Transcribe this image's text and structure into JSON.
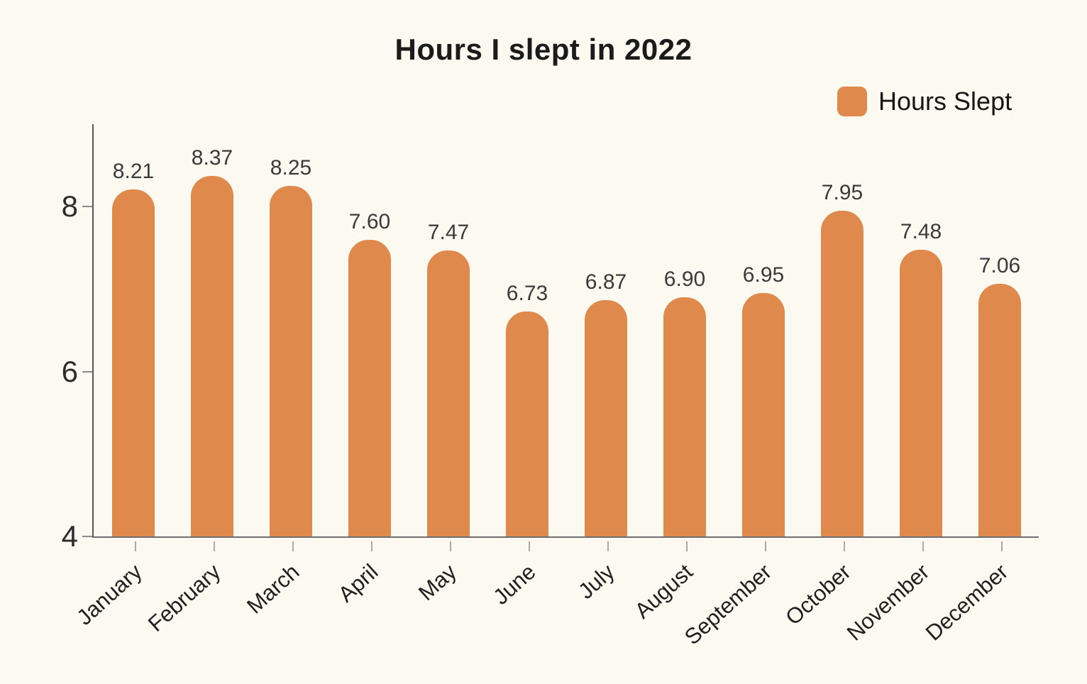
{
  "page": {
    "background_color": "#FCFAF0"
  },
  "title": "Hours I slept in 2022",
  "legend": {
    "label": "Hours Slept",
    "swatch_color": "#E0894C",
    "position": "top-right"
  },
  "chart_data": {
    "type": "bar",
    "title": "Hours I slept in 2022",
    "categories": [
      "January",
      "February",
      "March",
      "April",
      "May",
      "June",
      "July",
      "August",
      "September",
      "October",
      "November",
      "December"
    ],
    "series": [
      {
        "name": "Hours Slept",
        "color": "#E0894C",
        "values": [
          8.21,
          8.37,
          8.25,
          7.6,
          7.47,
          6.73,
          6.87,
          6.9,
          6.95,
          7.95,
          7.48,
          7.06
        ]
      }
    ],
    "value_labels": [
      "8.21",
      "8.37",
      "8.25",
      "7.60",
      "7.47",
      "6.73",
      "6.87",
      "6.90",
      "6.95",
      "7.95",
      "7.48",
      "7.06"
    ],
    "xlabel": "",
    "ylabel": "",
    "ylim": [
      4,
      9
    ],
    "yticks": [
      4,
      6,
      8
    ],
    "grid": false,
    "legend_position": "top-right",
    "x_label_rotation_deg": -42,
    "bar_style": "rounded-top"
  }
}
